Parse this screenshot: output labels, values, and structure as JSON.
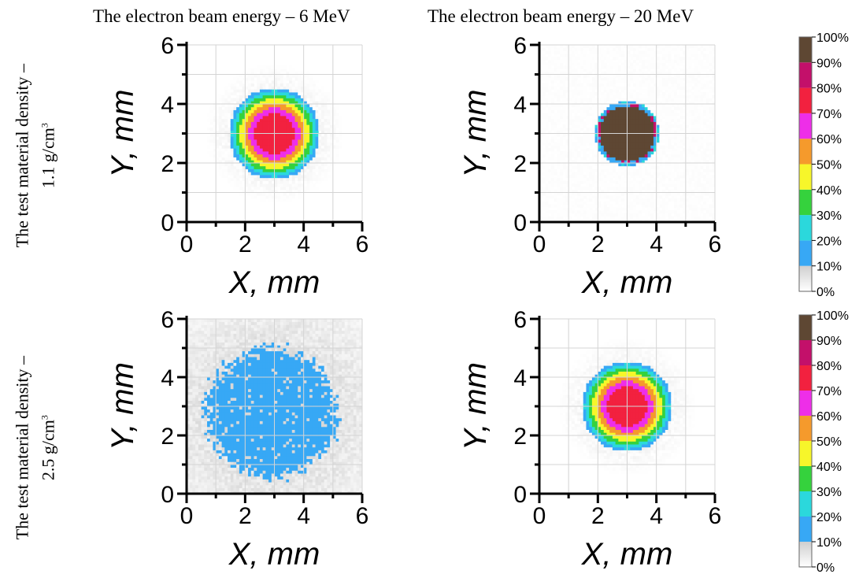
{
  "column_titles": [
    "The electron beam energy – 6 MeV",
    "The electron beam energy – 20 MeV"
  ],
  "row_titles": [
    {
      "line1": "The test material density –",
      "line2_prefix": "1.1 g/cm",
      "line2_sup": "3"
    },
    {
      "line1": "The test material density –",
      "line2_prefix": "2.5 g/cm",
      "line2_sup": "3"
    }
  ],
  "colors": {
    "zero": "#ffffff",
    "scale": [
      "#ffffff",
      "#d8d8d8",
      "#37a8f5",
      "#2bd8dc",
      "#35d23d",
      "#f7f62a",
      "#f59a2c",
      "#ee2ee8",
      "#f2213f",
      "#c3106a",
      "#5e4733"
    ]
  },
  "chart_data": [
    {
      "type": "heatmap",
      "panel": "6 MeV, 1.1 g/cm3",
      "xlabel": "X, mm",
      "ylabel": "Y, mm",
      "xlim": [
        0,
        6
      ],
      "ylim": [
        0,
        6
      ],
      "xticks": [
        "0",
        "2",
        "4",
        "6"
      ],
      "yticks": [
        "0",
        "2",
        "4",
        "6"
      ],
      "grid": true,
      "center": [
        3,
        3
      ],
      "spot_radius_mm": 1.55,
      "peak_percent": 80,
      "profile": "gaussian",
      "noise": 0.15
    },
    {
      "type": "heatmap",
      "panel": "20 MeV, 1.1 g/cm3",
      "xlabel": "X, mm",
      "ylabel": "Y, mm",
      "xlim": [
        0,
        6
      ],
      "ylim": [
        0,
        6
      ],
      "xticks": [
        "0",
        "2",
        "4",
        "6"
      ],
      "yticks": [
        "0",
        "2",
        "4",
        "6"
      ],
      "grid": true,
      "center": [
        3,
        3
      ],
      "spot_radius_mm": 1.0,
      "peak_percent": 100,
      "profile": "flat",
      "noise": 0.1
    },
    {
      "type": "heatmap",
      "panel": "6 MeV, 2.5 g/cm3",
      "xlabel": "X, mm",
      "ylabel": "Y, mm",
      "xlim": [
        0,
        6
      ],
      "ylim": [
        0,
        6
      ],
      "xticks": [
        "0",
        "2",
        "4",
        "6"
      ],
      "yticks": [
        "0",
        "2",
        "4",
        "6"
      ],
      "grid": true,
      "center": [
        2.9,
        2.8
      ],
      "spot_radius_mm": 2.2,
      "peak_percent": 22,
      "profile": "diffuse",
      "noise": 0.8
    },
    {
      "type": "heatmap",
      "panel": "20 MeV, 2.5 g/cm3",
      "xlabel": "X, mm",
      "ylabel": "Y, mm",
      "xlim": [
        0,
        6
      ],
      "ylim": [
        0,
        6
      ],
      "xticks": [
        "0",
        "2",
        "4",
        "6"
      ],
      "yticks": [
        "0",
        "2",
        "4",
        "6"
      ],
      "grid": true,
      "center": [
        3,
        3
      ],
      "spot_radius_mm": 1.55,
      "peak_percent": 80,
      "profile": "gaussian",
      "noise": 0.15
    }
  ],
  "colorbar": {
    "ticks": [
      "0%",
      "10%",
      "20%",
      "30%",
      "40%",
      "50%",
      "60%",
      "70%",
      "80%",
      "90%",
      "100%"
    ]
  }
}
